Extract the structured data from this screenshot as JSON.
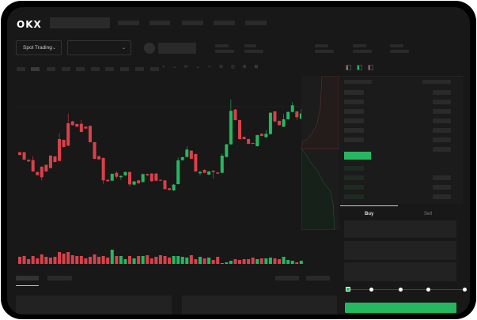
{
  "header": {
    "logo": "OKX"
  },
  "toolbar": {
    "market_select_label": "Spot Trading",
    "chevron": "chevron-down-icon"
  },
  "trade_panel": {
    "tabs": [
      {
        "label": "Buy",
        "active": true
      },
      {
        "label": "Sell",
        "active": false
      }
    ],
    "submit_color": "#25b860",
    "slider_steps": [
      0,
      25,
      50,
      75,
      100
    ]
  },
  "colors": {
    "up": "#25b860",
    "down": "#d9414a",
    "background": "#181818"
  },
  "chart_data": {
    "type": "candlestick",
    "candles": [
      [
        785,
        775,
        787,
        773
      ],
      [
        785,
        757,
        786,
        755
      ],
      [
        756,
        750,
        758,
        748
      ],
      [
        755,
        712,
        770,
        710
      ],
      [
        710,
        698,
        711,
        697
      ],
      [
        730,
        690,
        732,
        678
      ],
      [
        737,
        712,
        739,
        710
      ],
      [
        772,
        725,
        775,
        723
      ],
      [
        769,
        748,
        771,
        746
      ],
      [
        835,
        752,
        858,
        750
      ],
      [
        832,
        805,
        834,
        803
      ],
      [
        895,
        810,
        932,
        808
      ],
      [
        902,
        888,
        904,
        886
      ],
      [
        892,
        882,
        894,
        880
      ],
      [
        893,
        862,
        907,
        860
      ],
      [
        882,
        875,
        884,
        873
      ],
      [
        885,
        823,
        887,
        821
      ],
      [
        823,
        760,
        825,
        758
      ],
      [
        770,
        758,
        772,
        756
      ],
      [
        763,
        678,
        765,
        665
      ],
      [
        680,
        675,
        682,
        673
      ],
      [
        677,
        703,
        705,
        675
      ],
      [
        707,
        692,
        713,
        685
      ],
      [
        690,
        695,
        697,
        680
      ],
      [
        697,
        710,
        712,
        695
      ],
      [
        710,
        663,
        712,
        655
      ],
      [
        662,
        674,
        676,
        660
      ],
      [
        678,
        667,
        680,
        665
      ],
      [
        672,
        702,
        704,
        670
      ],
      [
        702,
        697,
        704,
        695
      ],
      [
        704,
        675,
        706,
        673
      ],
      [
        704,
        677,
        706,
        675
      ],
      [
        680,
        677,
        682,
        675
      ],
      [
        678,
        645,
        680,
        643
      ],
      [
        648,
        642,
        650,
        640
      ],
      [
        640,
        662,
        664,
        638
      ],
      [
        664,
        754,
        765,
        662
      ],
      [
        755,
        766,
        768,
        753
      ],
      [
        767,
        795,
        807,
        765
      ],
      [
        791,
        760,
        793,
        758
      ],
      [
        778,
        712,
        780,
        710
      ],
      [
        705,
        710,
        715,
        697
      ],
      [
        718,
        707,
        720,
        705
      ],
      [
        700,
        712,
        714,
        698
      ],
      [
        715,
        710,
        717,
        685
      ],
      [
        708,
        704,
        710,
        702
      ],
      [
        707,
        772,
        780,
        705
      ],
      [
        767,
        815,
        817,
        765
      ],
      [
        815,
        942,
        985,
        813
      ],
      [
        947,
        907,
        949,
        905
      ],
      [
        907,
        835,
        909,
        833
      ],
      [
        843,
        835,
        845,
        833
      ],
      [
        835,
        817,
        837,
        815
      ],
      [
        820,
        817,
        822,
        815
      ],
      [
        808,
        850,
        852,
        806
      ],
      [
        855,
        847,
        857,
        845
      ],
      [
        842,
        855,
        870,
        840
      ],
      [
        854,
        935,
        937,
        852
      ],
      [
        940,
        902,
        942,
        900
      ],
      [
        904,
        888,
        906,
        886
      ],
      [
        882,
        910,
        930,
        880
      ],
      [
        910,
        938,
        940,
        908
      ],
      [
        938,
        963,
        975,
        936
      ],
      [
        940,
        918,
        942,
        908
      ],
      [
        912,
        932,
        948,
        910
      ]
    ],
    "volume": [
      9,
      10,
      6,
      10,
      7,
      12,
      9,
      8,
      9,
      15,
      13,
      15,
      11,
      10,
      10,
      7,
      9,
      12,
      9,
      10,
      8,
      18,
      10,
      10,
      6,
      10,
      7,
      10,
      10,
      11,
      7,
      9,
      11,
      10,
      8,
      10,
      10,
      9,
      8,
      11,
      6,
      9,
      7,
      8,
      5,
      9,
      1,
      2,
      4,
      6,
      5,
      6,
      6,
      8,
      6,
      7,
      7,
      8,
      7,
      6,
      9,
      5,
      4,
      2,
      4
    ]
  }
}
